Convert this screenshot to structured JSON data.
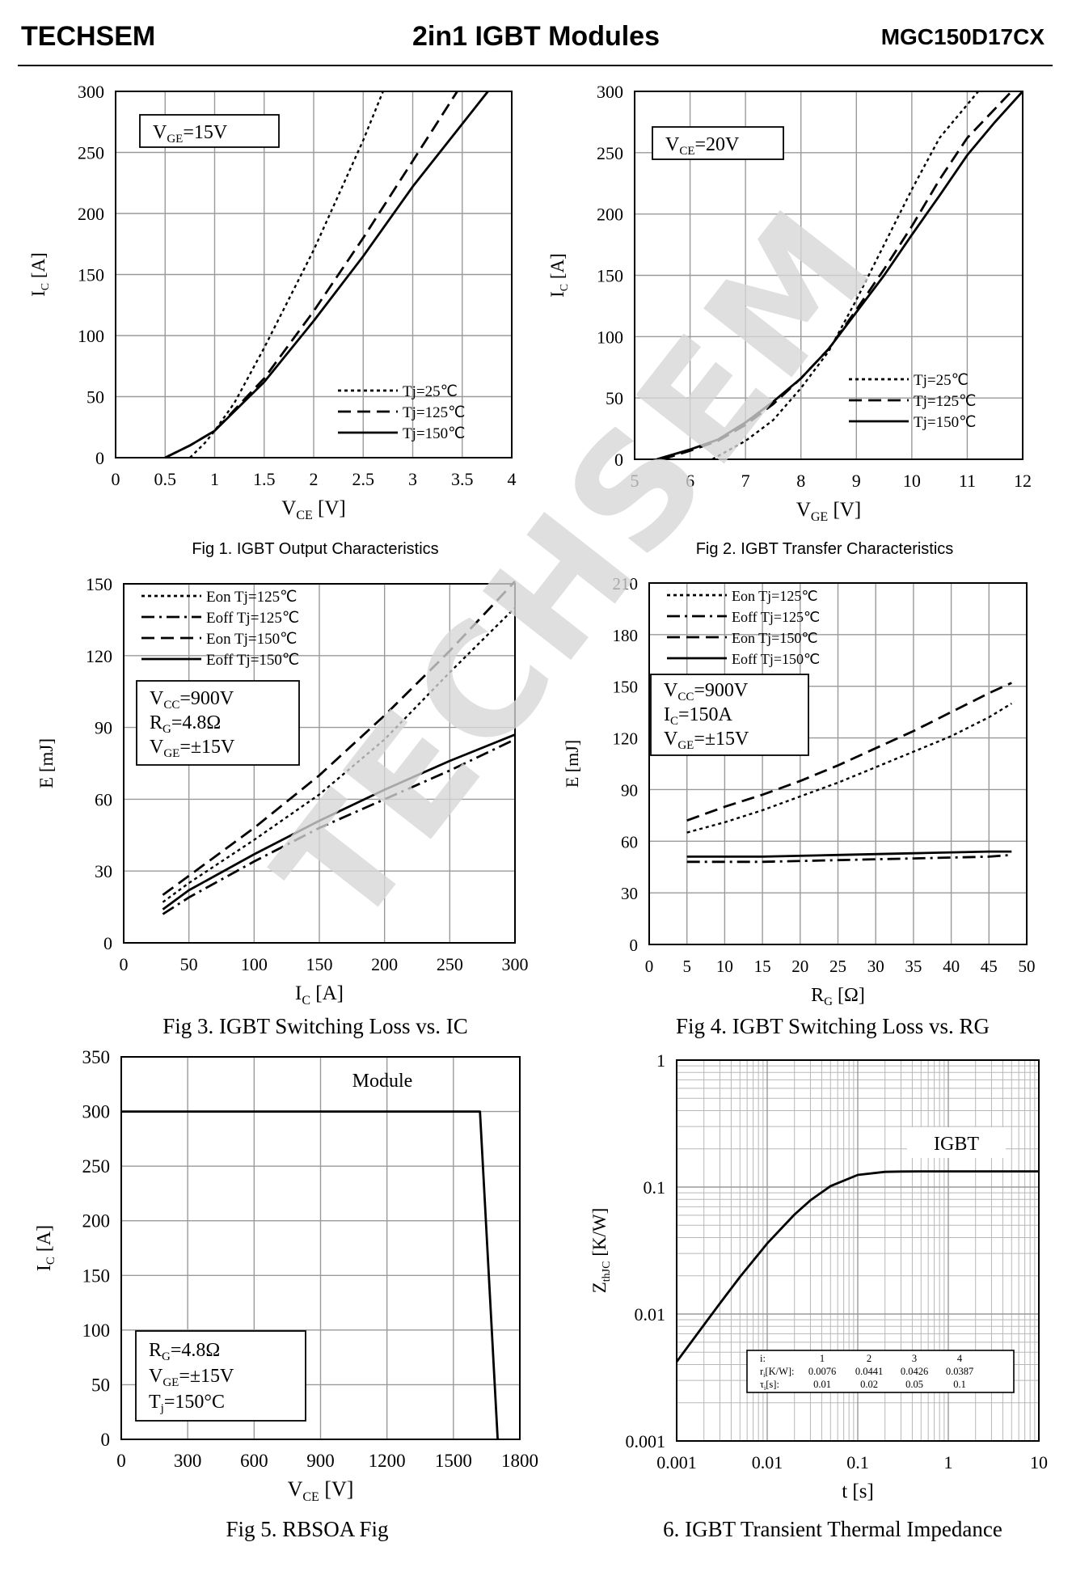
{
  "header": {
    "brand": "TECHSEM",
    "title": "2in1  IGBT  Modules",
    "part_number": "MGC150D17CX"
  },
  "watermark": "TECHSEM",
  "colors": {
    "line": "#000000",
    "grid": "#9a9a9a",
    "watermark": "#d0d0d0"
  },
  "chart_data": [
    {
      "id": "fig1",
      "type": "line",
      "caption": "Fig 1. IGBT Output Characteristics",
      "xlabel": "V_CE  [V]",
      "ylabel": "I_C [A]",
      "xlim": [
        0,
        4
      ],
      "ylim": [
        0,
        300
      ],
      "xticks": [
        0,
        0.5,
        1,
        1.5,
        2,
        2.5,
        3,
        3.5,
        4
      ],
      "xtick_labels": [
        "0",
        "0.5",
        "1",
        "1.5",
        "2",
        "2.5",
        "3",
        "3.5",
        "4"
      ],
      "yticks": [
        0,
        50,
        100,
        150,
        200,
        250,
        300
      ],
      "ytick_labels": [
        "0",
        "50",
        "100",
        "150",
        "200",
        "250",
        "300"
      ],
      "grid": true,
      "annotations": [
        "V_GE=15V"
      ],
      "legend_position": "bottom-right",
      "series": [
        {
          "name": "Tj=25℃",
          "style": "dotted",
          "points": [
            [
              0.75,
              0
            ],
            [
              0.9,
              12
            ],
            [
              1.0,
              22
            ],
            [
              1.2,
              45
            ],
            [
              1.5,
              90
            ],
            [
              2.0,
              170
            ],
            [
              2.5,
              260
            ],
            [
              2.7,
              300
            ]
          ]
        },
        {
          "name": "Tj=125℃",
          "style": "dashed",
          "points": [
            [
              0.5,
              0
            ],
            [
              0.75,
              10
            ],
            [
              1.0,
              22
            ],
            [
              1.5,
              65
            ],
            [
              2.0,
              120
            ],
            [
              2.5,
              180
            ],
            [
              3.0,
              243
            ],
            [
              3.45,
              300
            ]
          ]
        },
        {
          "name": "Tj=150℃",
          "style": "solid",
          "points": [
            [
              0.5,
              0
            ],
            [
              0.75,
              10
            ],
            [
              1.0,
              22
            ],
            [
              1.5,
              62
            ],
            [
              2.0,
              112
            ],
            [
              2.5,
              165
            ],
            [
              3.0,
              222
            ],
            [
              3.76,
              300
            ]
          ]
        }
      ]
    },
    {
      "id": "fig2",
      "type": "line",
      "caption": "Fig 2. IGBT Transfer Characteristics",
      "xlabel": "V_GE  [V]",
      "ylabel": "I_C [A]",
      "xlim": [
        5,
        12
      ],
      "ylim": [
        0,
        300
      ],
      "xticks": [
        5,
        6,
        7,
        8,
        9,
        10,
        11,
        12
      ],
      "xtick_labels": [
        "5",
        "6",
        "7",
        "8",
        "9",
        "10",
        "11",
        "12"
      ],
      "yticks": [
        0,
        50,
        100,
        150,
        200,
        250,
        300
      ],
      "ytick_labels": [
        "0",
        "50",
        "100",
        "150",
        "200",
        "250",
        "300"
      ],
      "grid": true,
      "annotations": [
        "V_CE=20V"
      ],
      "legend_position": "bottom-right",
      "series": [
        {
          "name": "Tj=25℃",
          "style": "dotted",
          "points": [
            [
              6.4,
              0
            ],
            [
              7.0,
              15
            ],
            [
              7.5,
              32
            ],
            [
              8.0,
              58
            ],
            [
              8.5,
              88
            ],
            [
              9.0,
              130
            ],
            [
              9.5,
              175
            ],
            [
              10.0,
              220
            ],
            [
              10.5,
              262
            ],
            [
              11.2,
              300
            ]
          ]
        },
        {
          "name": "Tj=125℃",
          "style": "dashed",
          "points": [
            [
              5.5,
              0
            ],
            [
              6.0,
              7
            ],
            [
              6.5,
              15
            ],
            [
              7.0,
              28
            ],
            [
              7.5,
              45
            ],
            [
              8.0,
              66
            ],
            [
              8.5,
              90
            ],
            [
              9.0,
              122
            ],
            [
              9.5,
              155
            ],
            [
              10.0,
              190
            ],
            [
              10.5,
              228
            ],
            [
              11.0,
              262
            ],
            [
              11.8,
              300
            ]
          ]
        },
        {
          "name": "Tj=150℃",
          "style": "solid",
          "points": [
            [
              5.4,
              0
            ],
            [
              6.0,
              8
            ],
            [
              6.5,
              16
            ],
            [
              7.0,
              30
            ],
            [
              7.5,
              47
            ],
            [
              8.0,
              66
            ],
            [
              8.5,
              90
            ],
            [
              9.0,
              120
            ],
            [
              9.5,
              150
            ],
            [
              10.0,
              183
            ],
            [
              10.5,
              215
            ],
            [
              11.0,
              248
            ],
            [
              11.5,
              275
            ],
            [
              12.0,
              300
            ]
          ]
        }
      ]
    },
    {
      "id": "fig3",
      "type": "line",
      "caption": "Fig 3. IGBT Switching Loss vs. IC",
      "xlabel": "I_C  [A]",
      "ylabel": "E [mJ]",
      "xlim": [
        0,
        300
      ],
      "ylim": [
        0,
        150
      ],
      "xticks": [
        0,
        50,
        100,
        150,
        200,
        250,
        300
      ],
      "xtick_labels": [
        "0",
        "50",
        "100",
        "150",
        "200",
        "250",
        "300"
      ],
      "yticks": [
        0,
        30,
        60,
        90,
        120,
        150
      ],
      "ytick_labels": [
        "0",
        "30",
        "60",
        "90",
        "120",
        "150"
      ],
      "grid": true,
      "annotations": [
        "V_CC=900V",
        "R_G=4.8Ω",
        "V_GE=±15V"
      ],
      "legend_position": "top-left",
      "series": [
        {
          "name": "Eon Tj=125℃",
          "style": "dotted",
          "points": [
            [
              30,
              17
            ],
            [
              50,
              25
            ],
            [
              100,
              43
            ],
            [
              150,
              62
            ],
            [
              200,
              85
            ],
            [
              250,
              113
            ],
            [
              300,
              140
            ]
          ]
        },
        {
          "name": "Eoff Tj=125℃",
          "style": "dashdot",
          "points": [
            [
              30,
              12
            ],
            [
              50,
              19
            ],
            [
              100,
              34
            ],
            [
              150,
              48
            ],
            [
              200,
              60
            ],
            [
              250,
              72
            ],
            [
              300,
              85
            ]
          ]
        },
        {
          "name": "Eon Tj=150℃",
          "style": "dashed",
          "points": [
            [
              30,
              20
            ],
            [
              50,
              28
            ],
            [
              100,
              48
            ],
            [
              150,
              70
            ],
            [
              200,
              95
            ],
            [
              250,
              122
            ],
            [
              300,
              151
            ]
          ]
        },
        {
          "name": "Eoff Tj=150℃",
          "style": "solid",
          "points": [
            [
              30,
              14
            ],
            [
              50,
              22
            ],
            [
              100,
              37
            ],
            [
              150,
              51
            ],
            [
              200,
              64
            ],
            [
              250,
              76
            ],
            [
              300,
              87
            ]
          ]
        }
      ]
    },
    {
      "id": "fig4",
      "type": "line",
      "caption": "Fig 4. IGBT Switching Loss vs. RG",
      "xlabel": "R_G  [Ω]",
      "ylabel": "E [mJ]",
      "xlim": [
        0,
        50
      ],
      "ylim": [
        0,
        210
      ],
      "xticks": [
        0,
        5,
        10,
        15,
        20,
        25,
        30,
        35,
        40,
        45,
        50
      ],
      "xtick_labels": [
        "0",
        "5",
        "10",
        "15",
        "20",
        "25",
        "30",
        "35",
        "40",
        "45",
        "50"
      ],
      "yticks": [
        0,
        30,
        60,
        90,
        120,
        150,
        180,
        210
      ],
      "ytick_labels": [
        "0",
        "30",
        "60",
        "90",
        "120",
        "150",
        "180",
        "210"
      ],
      "grid": true,
      "annotations": [
        "V_CC=900V",
        "I_C=150A",
        "V_GE=±15V"
      ],
      "legend_position": "top-left",
      "series": [
        {
          "name": "Eon Tj=125℃",
          "style": "dotted",
          "points": [
            [
              5,
              65
            ],
            [
              10,
              71
            ],
            [
              15,
              78
            ],
            [
              20,
              86
            ],
            [
              25,
              94
            ],
            [
              30,
              103
            ],
            [
              35,
              112
            ],
            [
              40,
              121
            ],
            [
              45,
              132
            ],
            [
              48,
              140
            ]
          ]
        },
        {
          "name": "Eoff Tj=125℃",
          "style": "dashdot",
          "points": [
            [
              5,
              48
            ],
            [
              15,
              48
            ],
            [
              25,
              49
            ],
            [
              35,
              50
            ],
            [
              45,
              51
            ],
            [
              48,
              52
            ]
          ]
        },
        {
          "name": "Eon Tj=150℃",
          "style": "dashed",
          "points": [
            [
              5,
              72
            ],
            [
              10,
              80
            ],
            [
              15,
              87
            ],
            [
              20,
              95
            ],
            [
              25,
              104
            ],
            [
              30,
              114
            ],
            [
              35,
              124
            ],
            [
              40,
              135
            ],
            [
              45,
              146
            ],
            [
              48,
              152
            ]
          ]
        },
        {
          "name": "Eoff Tj=150℃",
          "style": "solid",
          "points": [
            [
              5,
              51
            ],
            [
              15,
              51
            ],
            [
              25,
              52
            ],
            [
              35,
              53
            ],
            [
              45,
              54
            ],
            [
              48,
              54
            ]
          ]
        }
      ]
    },
    {
      "id": "fig5",
      "type": "line",
      "caption": "Fig 5. RBSOA Fig",
      "xlabel": "V_CE  [V]",
      "ylabel": "I_C [A]",
      "xlim": [
        0,
        1800
      ],
      "ylim": [
        0,
        350
      ],
      "xticks": [
        0,
        300,
        600,
        900,
        1200,
        1500,
        1800
      ],
      "xtick_labels": [
        "0",
        "300",
        "600",
        "900",
        "1200",
        "1500",
        "1800"
      ],
      "yticks": [
        0,
        50,
        100,
        150,
        200,
        250,
        300,
        350
      ],
      "ytick_labels": [
        "0",
        "50",
        "100",
        "150",
        "200",
        "250",
        "300",
        "350"
      ],
      "grid": true,
      "annotations": [
        "Module",
        "R_G=4.8Ω",
        "V_GE=±15V",
        "T_j=150°C"
      ],
      "series": [
        {
          "name": "Module",
          "style": "solid",
          "points": [
            [
              0,
              300
            ],
            [
              1620,
              300
            ],
            [
              1700,
              0
            ]
          ]
        }
      ]
    },
    {
      "id": "fig6",
      "type": "line",
      "caption": "6. IGBT Transient Thermal Impedance",
      "xlabel": "t [s]",
      "ylabel": "Z_thJC [K/W]",
      "xscale": "log",
      "yscale": "log",
      "xlim": [
        0.001,
        10
      ],
      "ylim": [
        0.001,
        1
      ],
      "xticks": [
        0.001,
        0.01,
        0.1,
        1,
        10
      ],
      "xtick_labels": [
        "0.001",
        "0.01",
        "0.1",
        "1",
        "10"
      ],
      "yticks": [
        0.001,
        0.01,
        0.1,
        1
      ],
      "ytick_labels": [
        "0.001",
        "0.01",
        "0.1",
        "1"
      ],
      "grid": true,
      "annotations": [
        "IGBT"
      ],
      "series": [
        {
          "name": "IGBT",
          "style": "solid",
          "points": [
            [
              0.001,
              0.0042
            ],
            [
              0.002,
              0.0082
            ],
            [
              0.003,
              0.0121
            ],
            [
              0.005,
              0.0196
            ],
            [
              0.01,
              0.036
            ],
            [
              0.02,
              0.0607
            ],
            [
              0.03,
              0.0786
            ],
            [
              0.05,
              0.1018
            ],
            [
              0.1,
              0.1246
            ],
            [
              0.2,
              0.1317
            ],
            [
              0.3,
              0.1326
            ],
            [
              0.5,
              0.133
            ],
            [
              1,
              0.133
            ],
            [
              10,
              0.133
            ]
          ]
        }
      ],
      "table": {
        "header": "i:",
        "columns": [
          "1",
          "2",
          "3",
          "4"
        ],
        "r_label": "r_i[K/W]:",
        "r_values": [
          "0.0076",
          "0.0441",
          "0.0426",
          "0.0387"
        ],
        "tau_label": "τ_i[s]:",
        "tau_values": [
          "0.01",
          "0.02",
          "0.05",
          "0.1"
        ]
      }
    }
  ]
}
